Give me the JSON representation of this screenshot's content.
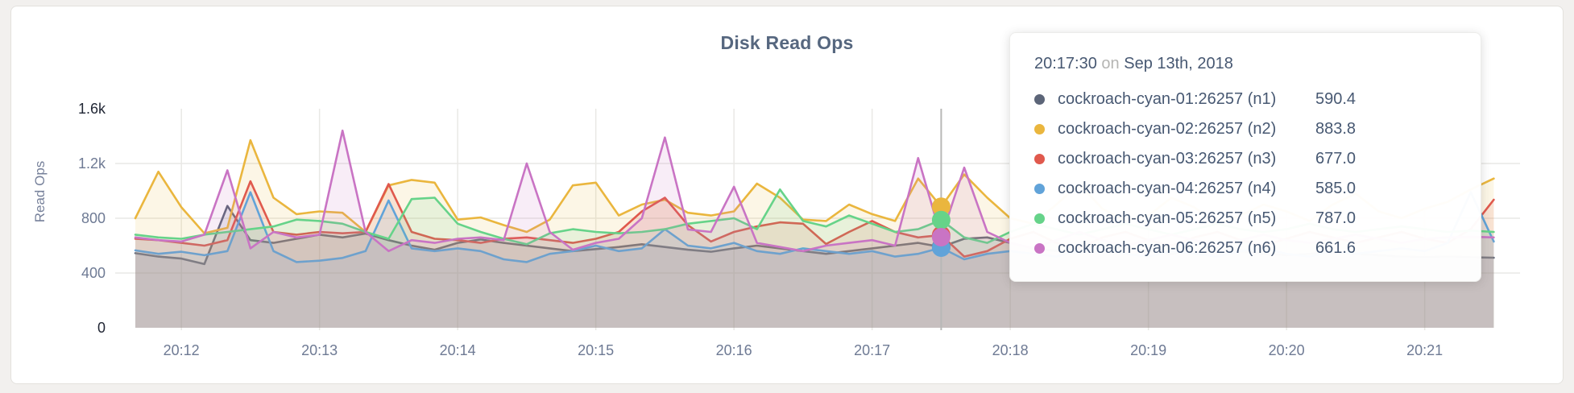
{
  "chart": {
    "title": "Disk Read Ops",
    "y_axis": {
      "label": "Read Ops",
      "ticks": [
        {
          "value": 0,
          "label": "0",
          "emphasis": true,
          "gridline": false
        },
        {
          "value": 400,
          "label": "400",
          "emphasis": false,
          "gridline": true
        },
        {
          "value": 800,
          "label": "800",
          "emphasis": false,
          "gridline": true
        },
        {
          "value": 1200,
          "label": "1.2k",
          "emphasis": false,
          "gridline": true
        },
        {
          "value": 1600,
          "label": "1.6k",
          "emphasis": true,
          "gridline": false
        }
      ]
    },
    "x_axis": {
      "ticks": [
        {
          "index": 2,
          "label": "20:12"
        },
        {
          "index": 8,
          "label": "20:13"
        },
        {
          "index": 14,
          "label": "20:14"
        },
        {
          "index": 20,
          "label": "20:15"
        },
        {
          "index": 26,
          "label": "20:16"
        },
        {
          "index": 32,
          "label": "20:17"
        },
        {
          "index": 38,
          "label": "20:18"
        },
        {
          "index": 44,
          "label": "20:19"
        },
        {
          "index": 50,
          "label": "20:20"
        },
        {
          "index": 56,
          "label": "20:21"
        }
      ]
    }
  },
  "chart_data": {
    "type": "line",
    "title": "Disk Read Ops",
    "xlabel": "",
    "ylabel": "Read Ops",
    "ylim": [
      0,
      1600
    ],
    "grid": true,
    "x_start": "20:11:40",
    "x_interval_seconds": 10,
    "x_tick_labels": [
      "20:12",
      "20:13",
      "20:14",
      "20:15",
      "20:16",
      "20:17",
      "20:18",
      "20:19",
      "20:20",
      "20:21"
    ],
    "hover_index": 35,
    "hover_time": "20:17:30",
    "series": [
      {
        "name": "cockroach-cyan-01:26257 (n1)",
        "color": "#5c6578",
        "values": [
          545,
          520,
          505,
          465,
          890,
          640,
          620,
          650,
          680,
          660,
          688,
          640,
          600,
          570,
          620,
          645,
          620,
          600,
          580,
          560,
          575,
          590,
          610,
          590,
          570,
          555,
          580,
          600,
          580,
          560,
          540,
          560,
          580,
          600,
          620,
          590.4,
          650,
          660,
          620,
          580,
          560,
          580,
          600,
          580,
          560,
          540,
          560,
          580,
          560,
          540,
          530,
          540,
          550,
          540,
          530,
          520,
          515,
          520,
          515,
          512
        ]
      },
      {
        "name": "cockroach-cyan-02:26257 (n2)",
        "color": "#eab63e",
        "values": [
          800,
          1140,
          880,
          690,
          730,
          1370,
          950,
          830,
          850,
          840,
          700,
          1040,
          1080,
          1060,
          790,
          806,
          750,
          700,
          790,
          1040,
          1060,
          820,
          900,
          935,
          840,
          820,
          850,
          1053,
          950,
          790,
          780,
          900,
          830,
          780,
          1090,
          883.8,
          1120,
          950,
          800,
          760,
          900,
          1050,
          870,
          780,
          820,
          950,
          880,
          760,
          820,
          900,
          850,
          780,
          900,
          980,
          850,
          800,
          870,
          920,
          1010,
          1090
        ]
      },
      {
        "name": "cockroach-cyan-03:26257 (n3)",
        "color": "#e0594d",
        "values": [
          650,
          640,
          620,
          600,
          640,
          1070,
          700,
          680,
          700,
          690,
          700,
          1050,
          700,
          650,
          640,
          620,
          650,
          660,
          640,
          620,
          650,
          700,
          850,
          950,
          750,
          630,
          700,
          740,
          770,
          760,
          612,
          700,
          780,
          700,
          660,
          677.0,
          520,
          560,
          650,
          700,
          620,
          580,
          660,
          700,
          640,
          600,
          660,
          700,
          640,
          600,
          650,
          700,
          660,
          620,
          660,
          700,
          650,
          620,
          720,
          935
        ]
      },
      {
        "name": "cockroach-cyan-04:26257 (n4)",
        "color": "#61a3d9",
        "values": [
          565,
          540,
          555,
          530,
          560,
          990,
          560,
          480,
          490,
          510,
          560,
          930,
          580,
          560,
          580,
          560,
          500,
          480,
          540,
          560,
          600,
          560,
          580,
          720,
          600,
          580,
          620,
          560,
          540,
          580,
          560,
          540,
          560,
          520,
          540,
          585.0,
          500,
          540,
          560,
          540,
          520,
          560,
          580,
          540,
          520,
          560,
          540,
          520,
          560,
          580,
          540,
          520,
          560,
          540,
          560,
          580,
          560,
          620,
          990,
          630
        ]
      },
      {
        "name": "cockroach-cyan-05:26257 (n5)",
        "color": "#66d389",
        "values": [
          680,
          660,
          650,
          680,
          700,
          720,
          740,
          790,
          780,
          760,
          700,
          650,
          940,
          950,
          760,
          700,
          650,
          610,
          690,
          720,
          700,
          690,
          700,
          720,
          760,
          780,
          800,
          720,
          1010,
          780,
          740,
          820,
          760,
          700,
          720,
          787.0,
          660,
          620,
          700,
          760,
          720,
          680,
          720,
          760,
          720,
          680,
          720,
          760,
          720,
          700,
          720,
          760,
          720,
          700,
          720,
          740,
          720,
          700,
          710,
          700
        ]
      },
      {
        "name": "cockroach-cyan-06:26257 (n6)",
        "color": "#c974c4",
        "values": [
          660,
          640,
          630,
          680,
          1150,
          580,
          700,
          660,
          680,
          1440,
          700,
          560,
          640,
          620,
          650,
          660,
          640,
          1200,
          700,
          570,
          620,
          650,
          800,
          1390,
          718,
          700,
          1030,
          620,
          590,
          560,
          600,
          620,
          640,
          600,
          1240,
          661.6,
          1170,
          700,
          620,
          580,
          640,
          700,
          640,
          600,
          640,
          680,
          640,
          600,
          640,
          680,
          640,
          620,
          650,
          680,
          650,
          620,
          650,
          660,
          665,
          660
        ]
      }
    ]
  },
  "tooltip": {
    "time": "20:17:30",
    "conjunction": "on",
    "date": "Sep 13th, 2018",
    "rows": [
      {
        "label": "cockroach-cyan-01:26257 (n1)",
        "value": "590.4",
        "color": "#5c6578"
      },
      {
        "label": "cockroach-cyan-02:26257 (n2)",
        "value": "883.8",
        "color": "#eab63e"
      },
      {
        "label": "cockroach-cyan-03:26257 (n3)",
        "value": "677.0",
        "color": "#e0594d"
      },
      {
        "label": "cockroach-cyan-04:26257 (n4)",
        "value": "585.0",
        "color": "#61a3d9"
      },
      {
        "label": "cockroach-cyan-05:26257 (n5)",
        "value": "787.0",
        "color": "#66d389"
      },
      {
        "label": "cockroach-cyan-06:26257 (n6)",
        "value": "661.6",
        "color": "#c974c4"
      }
    ]
  },
  "style": {
    "gridline_color": "#e9e8e5",
    "hover_line_color": "#b8b8b6",
    "fill_opacity": 0.13,
    "line_width": 2.6
  }
}
